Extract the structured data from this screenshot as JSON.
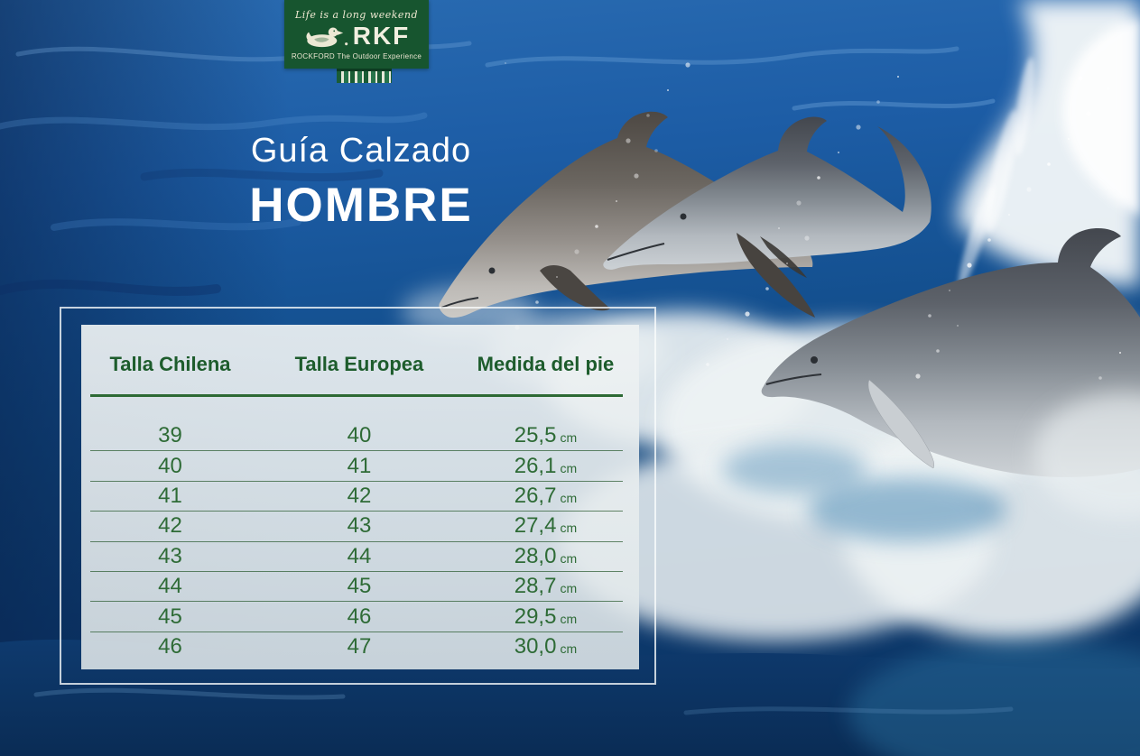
{
  "brand": {
    "tagline": "Life is a long weekend",
    "name": "RKF",
    "subtitle": "ROCKFORD The Outdoor Experience"
  },
  "title": {
    "line1": "Guía Calzado",
    "line2": "HOMBRE"
  },
  "size_guide": {
    "columns": [
      {
        "key": "chilena",
        "label": "Talla Chilena"
      },
      {
        "key": "europea",
        "label": "Talla Europea"
      },
      {
        "key": "medida",
        "label": "Medida del pie"
      }
    ],
    "unit": "cm",
    "rows": [
      [
        "39",
        "40",
        "25,5"
      ],
      [
        "40",
        "41",
        "26,1"
      ],
      [
        "41",
        "42",
        "26,7"
      ],
      [
        "42",
        "43",
        "27,4"
      ],
      [
        "43",
        "44",
        "28,0"
      ],
      [
        "44",
        "45",
        "28,7"
      ],
      [
        "45",
        "46",
        "29,5"
      ],
      [
        "46",
        "47",
        "30,0"
      ]
    ]
  },
  "colors": {
    "logo_green": "#17552f",
    "header_green": "#1d5c2c",
    "value_green": "#2e6b36",
    "ocean_deep": "#0d3a6e",
    "foam_white": "#eef3f4"
  }
}
